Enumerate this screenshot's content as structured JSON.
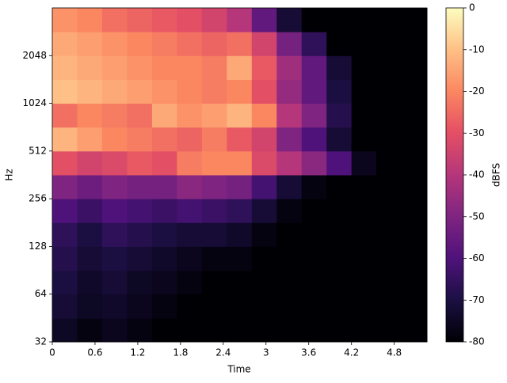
{
  "chart_data": {
    "type": "heatmap",
    "xlabel": "Time",
    "ylabel": "Hz",
    "colorbar_label": "dBFS",
    "colormap": "magma",
    "yscale": "log2",
    "xlim": [
      0,
      5.26
    ],
    "xticks": [
      0,
      0.6,
      1.2,
      1.8,
      2.4,
      3,
      3.6,
      4.2,
      4.8
    ],
    "ylim": [
      32,
      4096
    ],
    "yticks": [
      32,
      64,
      128,
      256,
      512,
      1024,
      2048
    ],
    "clim": [
      -80,
      0
    ],
    "cticks": [
      -80,
      -70,
      -60,
      -50,
      -40,
      -30,
      -20,
      -10,
      0
    ],
    "x_bins": [
      0,
      0.35,
      0.7,
      1.05,
      1.4,
      1.75,
      2.1,
      2.45,
      2.8,
      3.15,
      3.5,
      3.85,
      4.2,
      4.55,
      4.9,
      5.26
    ],
    "y_bins": [
      32,
      45,
      64,
      90,
      128,
      181,
      256,
      362,
      512,
      724,
      1024,
      1448,
      2048,
      2896,
      4096
    ],
    "z": [
      [
        -75,
        -78,
        -76,
        -78,
        -80,
        -80,
        -80,
        -80,
        -80,
        -80,
        -80,
        -80,
        -80,
        -80,
        -80
      ],
      [
        -72,
        -75,
        -74,
        -76,
        -78,
        -80,
        -80,
        -80,
        -80,
        -80,
        -80,
        -80,
        -80,
        -80,
        -80
      ],
      [
        -70,
        -74,
        -72,
        -75,
        -76,
        -78,
        -80,
        -80,
        -80,
        -80,
        -80,
        -80,
        -80,
        -80,
        -80
      ],
      [
        -68,
        -72,
        -70,
        -72,
        -74,
        -76,
        -78,
        -78,
        -80,
        -80,
        -80,
        -80,
        -80,
        -80,
        -80
      ],
      [
        -66,
        -70,
        -66,
        -68,
        -70,
        -72,
        -72,
        -74,
        -78,
        -80,
        -80,
        -80,
        -80,
        -80,
        -80
      ],
      [
        -60,
        -64,
        -60,
        -62,
        -64,
        -62,
        -64,
        -66,
        -72,
        -78,
        -80,
        -80,
        -80,
        -80,
        -80
      ],
      [
        -50,
        -54,
        -50,
        -52,
        -52,
        -48,
        -50,
        -52,
        -62,
        -72,
        -78,
        -80,
        -80,
        -80,
        -80
      ],
      [
        -30,
        -34,
        -32,
        -28,
        -30,
        -22,
        -20,
        -20,
        -32,
        -40,
        -48,
        -60,
        -76,
        -80,
        -80
      ],
      [
        -12,
        -16,
        -20,
        -22,
        -24,
        -26,
        -22,
        -28,
        -34,
        -50,
        -60,
        -72,
        -80,
        -80,
        -80
      ],
      [
        -24,
        -20,
        -22,
        -24,
        -14,
        -18,
        -16,
        -12,
        -20,
        -40,
        -50,
        -68,
        -80,
        -80,
        -80
      ],
      [
        -10,
        -12,
        -14,
        -16,
        -18,
        -20,
        -22,
        -20,
        -30,
        -46,
        -56,
        -70,
        -80,
        -80,
        -80
      ],
      [
        -12,
        -14,
        -16,
        -18,
        -20,
        -20,
        -22,
        -14,
        -28,
        -44,
        -56,
        -72,
        -80,
        -80,
        -80
      ],
      [
        -14,
        -16,
        -18,
        -20,
        -22,
        -24,
        -26,
        -24,
        -34,
        -52,
        -66,
        -80,
        -80,
        -80,
        -80
      ],
      [
        -18,
        -20,
        -24,
        -26,
        -28,
        -30,
        -34,
        -40,
        -56,
        -72,
        -80,
        -80,
        -80,
        -80,
        -80
      ]
    ]
  }
}
